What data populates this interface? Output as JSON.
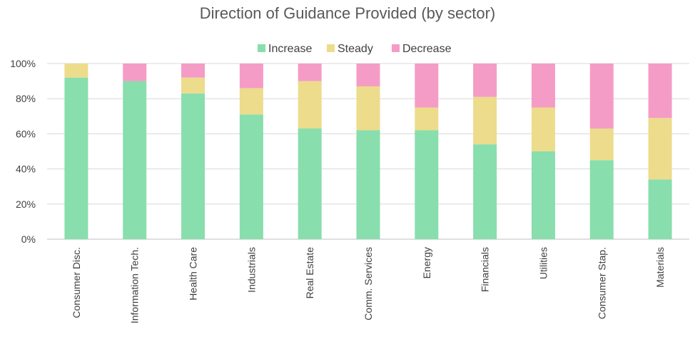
{
  "chart_data": {
    "type": "bar",
    "stacked": true,
    "title": "Direction of Guidance Provided (by sector)",
    "xlabel": "",
    "ylabel": "",
    "ylim": [
      0,
      100
    ],
    "yticks": [
      "0%",
      "20%",
      "40%",
      "60%",
      "80%",
      "100%"
    ],
    "legend_position": "top-center",
    "categories": [
      "Consumer Disc.",
      "Information Tech.",
      "Health Care",
      "Industrials",
      "Real Estate",
      "Comm. Services",
      "Energy",
      "Financials",
      "Utilities",
      "Consumer Stap.",
      "Materials"
    ],
    "series": [
      {
        "name": "Increase",
        "color": "#88dead",
        "values": [
          92,
          90,
          83,
          71,
          63,
          62,
          62,
          54,
          50,
          45,
          34
        ]
      },
      {
        "name": "Steady",
        "color": "#ecdc8c",
        "values": [
          8,
          0,
          9,
          15,
          27,
          25,
          13,
          27,
          25,
          18,
          35
        ]
      },
      {
        "name": "Decrease",
        "color": "#f59cc6",
        "values": [
          0,
          10,
          8,
          14,
          10,
          13,
          25,
          19,
          25,
          37,
          31
        ]
      }
    ]
  }
}
